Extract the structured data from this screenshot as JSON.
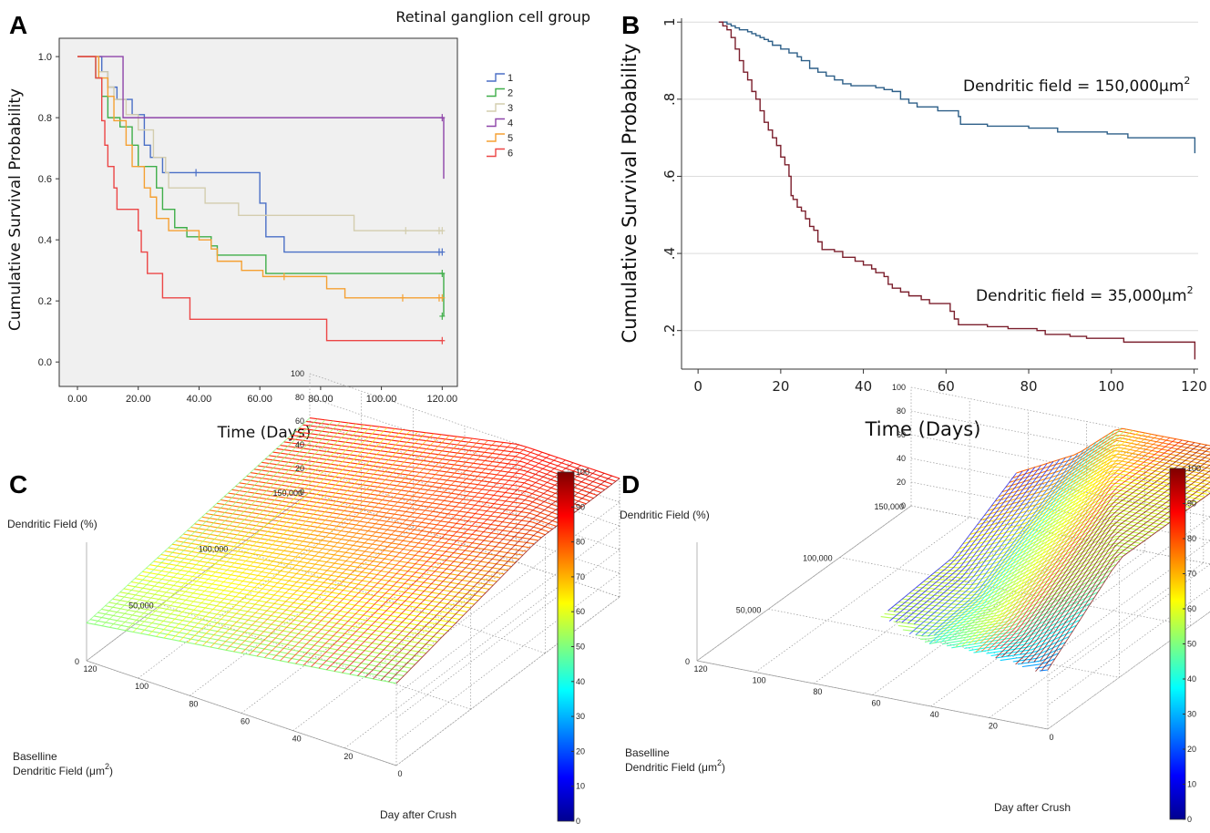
{
  "panels": {
    "A": "A",
    "B": "B",
    "C": "C",
    "D": "D"
  },
  "chart_data": [
    {
      "id": "A",
      "type": "line",
      "legend_title": "Retinal ganglion cell group",
      "xlabel": "Time (Days)",
      "ylabel": "Cumulative Survival Probability",
      "xticks": [
        "0.00",
        "20.00",
        "40.00",
        "60.00",
        "80.00",
        "100.00",
        "120.00"
      ],
      "yticks": [
        "0.0",
        "0.2",
        "0.4",
        "0.6",
        "0.8",
        "1.0"
      ],
      "xlim": [
        -6,
        125
      ],
      "ylim": [
        -0.08,
        1.06
      ],
      "legend_position": "right",
      "series": [
        {
          "name": "1",
          "color": "#4a6fc6",
          "steps": [
            [
              0,
              1
            ],
            [
              8,
              0.95
            ],
            [
              10,
              0.9
            ],
            [
              13,
              0.86
            ],
            [
              18,
              0.81
            ],
            [
              22,
              0.71
            ],
            [
              24,
              0.67
            ],
            [
              28,
              0.62
            ],
            [
              60,
              0.52
            ],
            [
              62,
              0.41
            ],
            [
              68,
              0.36
            ],
            [
              120,
              0.36
            ]
          ],
          "censored": [
            39,
            119,
            120
          ]
        },
        {
          "name": "2",
          "color": "#3fae49",
          "steps": [
            [
              0,
              1
            ],
            [
              6,
              0.93
            ],
            [
              8,
              0.87
            ],
            [
              10,
              0.8
            ],
            [
              14,
              0.77
            ],
            [
              18,
              0.71
            ],
            [
              20,
              0.64
            ],
            [
              26,
              0.57
            ],
            [
              28,
              0.5
            ],
            [
              32,
              0.44
            ],
            [
              36,
              0.41
            ],
            [
              44,
              0.38
            ],
            [
              46,
              0.35
            ],
            [
              62,
              0.29
            ],
            [
              120,
              0.29
            ],
            [
              120.5,
              0.15
            ]
          ],
          "censored": [
            120,
            121
          ]
        },
        {
          "name": "3",
          "color": "#d3cdae",
          "steps": [
            [
              0,
              1
            ],
            [
              7,
              0.95
            ],
            [
              10,
              0.9
            ],
            [
              12,
              0.86
            ],
            [
              16,
              0.81
            ],
            [
              20,
              0.76
            ],
            [
              25,
              0.67
            ],
            [
              29,
              0.62
            ],
            [
              30,
              0.57
            ],
            [
              42,
              0.52
            ],
            [
              53,
              0.48
            ],
            [
              91,
              0.43
            ],
            [
              120,
              0.43
            ]
          ],
          "censored": [
            108,
            119,
            120
          ]
        },
        {
          "name": "4",
          "color": "#8e44a9",
          "steps": [
            [
              0,
              1
            ],
            [
              15,
              0.8
            ],
            [
              120,
              0.8
            ],
            [
              120.5,
              0.6
            ]
          ],
          "censored": [
            120
          ]
        },
        {
          "name": "5",
          "color": "#f5a032",
          "steps": [
            [
              0,
              1
            ],
            [
              7,
              0.93
            ],
            [
              10,
              0.87
            ],
            [
              12,
              0.79
            ],
            [
              16,
              0.71
            ],
            [
              18,
              0.64
            ],
            [
              22,
              0.57
            ],
            [
              24,
              0.54
            ],
            [
              26,
              0.47
            ],
            [
              30,
              0.43
            ],
            [
              40,
              0.4
            ],
            [
              44,
              0.37
            ],
            [
              46,
              0.33
            ],
            [
              54,
              0.3
            ],
            [
              61,
              0.28
            ],
            [
              82,
              0.24
            ],
            [
              88,
              0.21
            ],
            [
              120,
              0.21
            ]
          ],
          "censored": [
            68,
            107,
            119,
            120
          ]
        },
        {
          "name": "6",
          "color": "#ec4646",
          "steps": [
            [
              0,
              1
            ],
            [
              6,
              0.93
            ],
            [
              8,
              0.79
            ],
            [
              9,
              0.71
            ],
            [
              10,
              0.64
            ],
            [
              12,
              0.57
            ],
            [
              13,
              0.5
            ],
            [
              20,
              0.43
            ],
            [
              21,
              0.36
            ],
            [
              23,
              0.29
            ],
            [
              28,
              0.21
            ],
            [
              37,
              0.14
            ],
            [
              82,
              0.07
            ],
            [
              120,
              0.07
            ]
          ],
          "censored": [
            120
          ]
        }
      ]
    },
    {
      "id": "B",
      "type": "line",
      "xlabel": "Time (Days)",
      "ylabel": "Cumulative Survival Probability",
      "xticks": [
        "0",
        "20",
        "40",
        "60",
        "80",
        "100",
        "120"
      ],
      "yticks": [
        "1",
        ".8",
        ".6",
        ".4",
        ".2"
      ],
      "xlim": [
        -4,
        121
      ],
      "ylim": [
        0.1,
        1.01
      ],
      "annotations": [
        {
          "text": "Dendritic field = 150,000μm",
          "sup": "2"
        },
        {
          "text": "Dendritic field = 35,000μm",
          "sup": "2"
        }
      ],
      "series": [
        {
          "name": "",
          "color": "#2d5f88",
          "steps": [
            [
              5,
              1
            ],
            [
              7,
              0.995
            ],
            [
              8,
              0.99
            ],
            [
              9,
              0.985
            ],
            [
              10,
              0.98
            ],
            [
              12,
              0.975
            ],
            [
              13,
              0.97
            ],
            [
              14,
              0.965
            ],
            [
              15,
              0.96
            ],
            [
              16,
              0.955
            ],
            [
              17,
              0.95
            ],
            [
              18,
              0.94
            ],
            [
              20,
              0.93
            ],
            [
              22,
              0.92
            ],
            [
              24,
              0.91
            ],
            [
              25,
              0.9
            ],
            [
              27,
              0.88
            ],
            [
              29,
              0.87
            ],
            [
              31,
              0.86
            ],
            [
              33,
              0.85
            ],
            [
              35,
              0.84
            ],
            [
              37,
              0.835
            ],
            [
              43,
              0.83
            ],
            [
              45,
              0.825
            ],
            [
              47,
              0.82
            ],
            [
              49,
              0.8
            ],
            [
              51,
              0.79
            ],
            [
              53,
              0.78
            ],
            [
              58,
              0.77
            ],
            [
              63,
              0.755
            ],
            [
              63.5,
              0.735
            ],
            [
              70,
              0.73
            ],
            [
              80,
              0.725
            ],
            [
              87,
              0.715
            ],
            [
              99,
              0.71
            ],
            [
              104,
              0.7
            ],
            [
              120,
              0.7
            ],
            [
              120.2,
              0.66
            ]
          ]
        },
        {
          "name": "",
          "color": "#7b1f2c",
          "steps": [
            [
              5,
              1
            ],
            [
              6,
              0.99
            ],
            [
              7,
              0.98
            ],
            [
              8,
              0.96
            ],
            [
              9,
              0.93
            ],
            [
              10,
              0.9
            ],
            [
              11,
              0.87
            ],
            [
              12,
              0.85
            ],
            [
              13,
              0.82
            ],
            [
              14,
              0.8
            ],
            [
              15,
              0.77
            ],
            [
              16,
              0.74
            ],
            [
              17,
              0.72
            ],
            [
              18,
              0.7
            ],
            [
              19,
              0.68
            ],
            [
              20,
              0.65
            ],
            [
              21,
              0.63
            ],
            [
              22,
              0.6
            ],
            [
              22.5,
              0.55
            ],
            [
              23,
              0.54
            ],
            [
              24,
              0.52
            ],
            [
              25,
              0.51
            ],
            [
              26,
              0.49
            ],
            [
              27,
              0.47
            ],
            [
              28,
              0.46
            ],
            [
              29,
              0.43
            ],
            [
              30,
              0.41
            ],
            [
              33,
              0.405
            ],
            [
              35,
              0.39
            ],
            [
              38,
              0.38
            ],
            [
              40,
              0.37
            ],
            [
              42,
              0.36
            ],
            [
              43,
              0.35
            ],
            [
              45,
              0.34
            ],
            [
              46,
              0.32
            ],
            [
              47,
              0.31
            ],
            [
              49,
              0.3
            ],
            [
              51,
              0.29
            ],
            [
              54,
              0.28
            ],
            [
              56,
              0.27
            ],
            [
              61,
              0.25
            ],
            [
              62,
              0.23
            ],
            [
              63,
              0.215
            ],
            [
              70,
              0.21
            ],
            [
              75,
              0.205
            ],
            [
              82,
              0.2
            ],
            [
              84,
              0.19
            ],
            [
              90,
              0.185
            ],
            [
              94,
              0.18
            ],
            [
              103,
              0.17
            ],
            [
              120,
              0.17
            ],
            [
              120.2,
              0.125
            ]
          ]
        }
      ]
    },
    {
      "id": "C",
      "type": "surface",
      "zlabel": "Dendritic Field (%)",
      "ylabel": "Baselline Dendritic Field (μm2)",
      "ylabel_parts": {
        "text": "Baselline",
        "line2": "Dendritic Field (μm",
        "sup": "2",
        "close": ")"
      },
      "xlabel": "Day after Crush",
      "zticks": [
        "100",
        "80",
        "60",
        "40",
        "20",
        "0"
      ],
      "yticks": [
        "150,000",
        "100,000",
        "50,000",
        "0"
      ],
      "xticks": [
        "120",
        "100",
        "80",
        "60",
        "40",
        "20",
        "0"
      ],
      "colorbar_ticks": [
        "100",
        "90",
        "80",
        "70",
        "60",
        "50",
        "40",
        "30",
        "20",
        "10",
        "0"
      ],
      "colormap": "jet"
    },
    {
      "id": "D",
      "type": "surface",
      "zlabel": "Dendritic Field (%)",
      "ylabel": "Baselline Dendritic Field (μm2)",
      "ylabel_parts": {
        "text": "Baselline",
        "line2": "Dendritic Field (μm",
        "sup": "2",
        "close": ")"
      },
      "xlabel": "Day after Crush",
      "zticks": [
        "100",
        "80",
        "60",
        "40",
        "20",
        "0"
      ],
      "yticks": [
        "150,000",
        "100,000",
        "50,000",
        "0"
      ],
      "xticks": [
        "120",
        "100",
        "80",
        "60",
        "40",
        "20",
        "0"
      ],
      "colorbar_ticks": [
        "100",
        "90",
        "80",
        "70",
        "60",
        "50",
        "40",
        "30",
        "20",
        "10",
        "0"
      ],
      "colormap": "jet"
    }
  ]
}
